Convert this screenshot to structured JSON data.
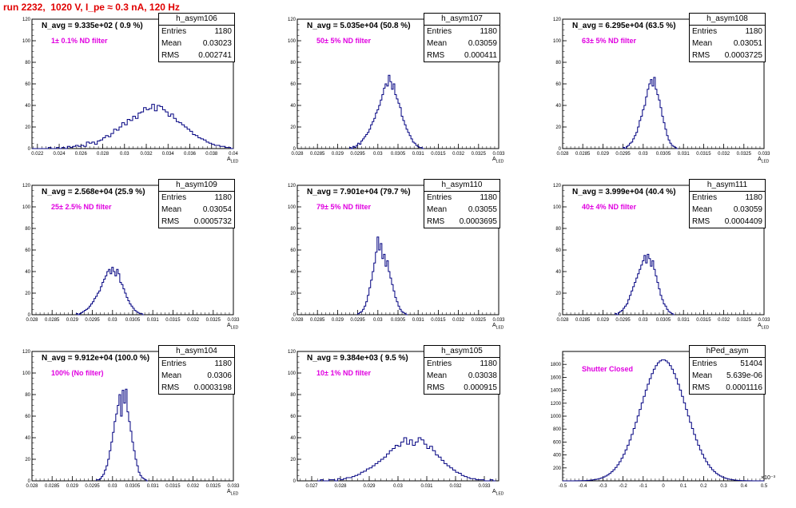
{
  "run_title": "run 2232,  1020 V, I_pe ≈ 0.3 nA, 120 Hz",
  "chart_data": [
    {
      "type": "bar",
      "stats_name": "h_asym106",
      "n_avg": "N_avg = 9.335e+02 ( 0.9 %)",
      "filter": "1± 0.1% ND filter",
      "ylabel": "Events",
      "xlabel": "A",
      "xlabel_sub": "LED",
      "entries": "1180",
      "mean": "0.03023",
      "rms": "0.002741",
      "xlim": [
        0.0215,
        0.04
      ],
      "ylim": [
        0,
        120
      ],
      "xticks": [
        "0.022",
        "0.024",
        "0.026",
        "0.028",
        "0.03",
        "0.032",
        "0.034",
        "0.036",
        "0.038",
        "0.04"
      ],
      "xtick_values": [
        0.022,
        0.024,
        0.026,
        0.028,
        0.03,
        0.032,
        0.034,
        0.036,
        0.038,
        0.04
      ],
      "yticks": [
        0,
        20,
        40,
        60,
        80,
        100,
        120
      ],
      "bin_start": 0.0215,
      "bin_width": 0.00025,
      "values": [
        0,
        0,
        0,
        0,
        0,
        0,
        1,
        0,
        0,
        1,
        0,
        1,
        0,
        2,
        1,
        2,
        3,
        2,
        3,
        2,
        6,
        5,
        6,
        4,
        7,
        8,
        10,
        12,
        11,
        14,
        18,
        17,
        20,
        24,
        22,
        27,
        26,
        30,
        28,
        33,
        34,
        38,
        36,
        37,
        41,
        35,
        40,
        39,
        36,
        34,
        30,
        32,
        28,
        25,
        24,
        22,
        20,
        18,
        16,
        13,
        12,
        10,
        9,
        8,
        6,
        5,
        4,
        3,
        3,
        2,
        2,
        1,
        1,
        0
      ]
    },
    {
      "type": "bar",
      "stats_name": "h_asym107",
      "n_avg": "N_avg = 5.035e+04 (50.8 %)",
      "filter": "50± 5% ND filter",
      "ylabel": "Events",
      "xlabel": "A",
      "xlabel_sub": "LED",
      "entries": "1180",
      "mean": "0.03059",
      "rms": "0.000411",
      "xlim": [
        0.028,
        0.033
      ],
      "ylim": [
        0,
        120
      ],
      "xticks": [
        "0.028",
        "0.0285",
        "0.029",
        "0.0295",
        "0.03",
        "0.0305",
        "0.031",
        "0.0315",
        "0.032",
        "0.0325",
        "0.033"
      ],
      "xtick_values": [
        0.028,
        0.0285,
        0.029,
        0.0295,
        0.03,
        0.0305,
        0.031,
        0.0315,
        0.032,
        0.0325,
        0.033
      ],
      "yticks": [
        0,
        20,
        40,
        60,
        80,
        100,
        120
      ],
      "bin_start": 0.0293,
      "bin_width": 4e-05,
      "values": [
        1,
        0,
        2,
        1,
        3,
        5,
        4,
        7,
        9,
        11,
        13,
        15,
        18,
        22,
        25,
        28,
        33,
        36,
        40,
        45,
        50,
        56,
        60,
        58,
        68,
        62,
        55,
        60,
        50,
        46,
        42,
        38,
        30,
        26,
        22,
        18,
        15,
        12,
        9,
        6,
        5,
        3,
        2,
        1,
        1,
        0
      ]
    },
    {
      "type": "bar",
      "stats_name": "h_asym108",
      "n_avg": "N_avg = 6.295e+04 (63.5 %)",
      "filter": "63± 5% ND filter",
      "ylabel": "Events",
      "xlabel": "A",
      "xlabel_sub": "LED",
      "entries": "1180",
      "mean": "0.03051",
      "rms": "0.0003725",
      "xlim": [
        0.028,
        0.033
      ],
      "ylim": [
        0,
        120
      ],
      "xticks": [
        "0.028",
        "0.0285",
        "0.029",
        "0.0295",
        "0.03",
        "0.0305",
        "0.031",
        "0.0315",
        "0.032",
        "0.0325",
        "0.033"
      ],
      "xtick_values": [
        0.028,
        0.0285,
        0.029,
        0.0295,
        0.03,
        0.0305,
        0.031,
        0.0315,
        0.032,
        0.0325,
        0.033
      ],
      "yticks": [
        0,
        20,
        40,
        60,
        80,
        100,
        120
      ],
      "bin_start": 0.0295,
      "bin_width": 4e-05,
      "values": [
        1,
        0,
        2,
        3,
        5,
        6,
        9,
        12,
        15,
        20,
        26,
        30,
        36,
        40,
        48,
        55,
        60,
        64,
        58,
        66,
        55,
        50,
        45,
        38,
        30,
        24,
        18,
        12,
        8,
        5,
        3,
        2,
        1,
        0
      ]
    },
    {
      "type": "bar",
      "stats_name": "h_asym109",
      "n_avg": "N_avg = 2.568e+04 (25.9 %)",
      "filter": "25± 2.5% ND filter",
      "ylabel": "Events",
      "xlabel": "A",
      "xlabel_sub": "LED",
      "entries": "1180",
      "mean": "0.03054",
      "rms": "0.0005732",
      "xlim": [
        0.028,
        0.033
      ],
      "ylim": [
        0,
        120
      ],
      "xticks": [
        "0.028",
        "0.0285",
        "0.029",
        "0.0295",
        "0.03",
        "0.0305",
        "0.031",
        "0.0315",
        "0.032",
        "0.0325",
        "0.033"
      ],
      "xtick_values": [
        0.028,
        0.0285,
        0.029,
        0.0295,
        0.03,
        0.0305,
        0.031,
        0.0315,
        0.032,
        0.0325,
        0.033
      ],
      "yticks": [
        0,
        20,
        40,
        60,
        80,
        100,
        120
      ],
      "bin_start": 0.0291,
      "bin_width": 4e-05,
      "values": [
        1,
        0,
        1,
        2,
        3,
        4,
        5,
        6,
        8,
        10,
        12,
        15,
        17,
        20,
        22,
        26,
        30,
        33,
        36,
        40,
        42,
        38,
        44,
        40,
        36,
        42,
        38,
        30,
        28,
        24,
        20,
        16,
        13,
        10,
        8,
        6,
        4,
        3,
        2,
        1,
        1,
        0
      ]
    },
    {
      "type": "bar",
      "stats_name": "h_asym110",
      "n_avg": "N_avg = 7.901e+04 (79.7 %)",
      "filter": "79± 5% ND filter",
      "ylabel": "Events",
      "xlabel": "A",
      "xlabel_sub": "LED",
      "entries": "1180",
      "mean": "0.03055",
      "rms": "0.0003695",
      "xlim": [
        0.028,
        0.033
      ],
      "ylim": [
        0,
        120
      ],
      "xticks": [
        "0.028",
        "0.0285",
        "0.029",
        "0.0295",
        "0.03",
        "0.0305",
        "0.031",
        "0.0315",
        "0.032",
        "0.0325",
        "0.033"
      ],
      "xtick_values": [
        0.028,
        0.0285,
        0.029,
        0.0295,
        0.03,
        0.0305,
        0.031,
        0.0315,
        0.032,
        0.0325,
        0.033
      ],
      "yticks": [
        0,
        20,
        40,
        60,
        80,
        100,
        120
      ],
      "bin_start": 0.0295,
      "bin_width": 4e-05,
      "values": [
        1,
        2,
        3,
        5,
        8,
        12,
        18,
        25,
        32,
        40,
        48,
        58,
        72,
        60,
        66,
        52,
        56,
        45,
        50,
        40,
        34,
        28,
        22,
        16,
        12,
        8,
        5,
        3,
        2,
        1,
        0
      ]
    },
    {
      "type": "bar",
      "stats_name": "h_asym111",
      "n_avg": "N_avg = 3.999e+04 (40.4 %)",
      "filter": "40± 4% ND filter",
      "ylabel": "Events",
      "xlabel": "A",
      "xlabel_sub": "LED",
      "entries": "1180",
      "mean": "0.03059",
      "rms": "0.0004409",
      "xlim": [
        0.028,
        0.033
      ],
      "ylim": [
        0,
        120
      ],
      "xticks": [
        "0.028",
        "0.0285",
        "0.029",
        "0.0295",
        "0.03",
        "0.0305",
        "0.031",
        "0.0315",
        "0.032",
        "0.0325",
        "0.033"
      ],
      "xtick_values": [
        0.028,
        0.0285,
        0.029,
        0.0295,
        0.03,
        0.0305,
        0.031,
        0.0315,
        0.032,
        0.0325,
        0.033
      ],
      "yticks": [
        0,
        20,
        40,
        60,
        80,
        100,
        120
      ],
      "bin_start": 0.0293,
      "bin_width": 4e-05,
      "values": [
        1,
        0,
        2,
        3,
        4,
        6,
        8,
        10,
        14,
        18,
        22,
        26,
        30,
        34,
        38,
        42,
        46,
        50,
        55,
        48,
        56,
        52,
        45,
        50,
        42,
        36,
        30,
        24,
        18,
        14,
        10,
        8,
        5,
        3,
        2,
        1,
        0
      ]
    },
    {
      "type": "bar",
      "stats_name": "h_asym104",
      "n_avg": "N_avg = 9.912e+04 (100.0 %)",
      "filter": "100% (No filter)",
      "ylabel": "Events",
      "xlabel": "A",
      "xlabel_sub": "LED",
      "entries": "1180",
      "mean": "0.0306",
      "rms": "0.0003198",
      "xlim": [
        0.028,
        0.033
      ],
      "ylim": [
        0,
        120
      ],
      "xticks": [
        "0.028",
        "0.0285",
        "0.029",
        "0.0295",
        "0.03",
        "0.0305",
        "0.031",
        "0.0315",
        "0.032",
        "0.0325",
        "0.033"
      ],
      "xtick_values": [
        0.028,
        0.0285,
        0.029,
        0.0295,
        0.03,
        0.0305,
        0.031,
        0.0315,
        0.032,
        0.0325,
        0.033
      ],
      "yticks": [
        0,
        20,
        40,
        60,
        80,
        100,
        120
      ],
      "bin_start": 0.0296,
      "bin_width": 4e-05,
      "values": [
        1,
        1,
        2,
        4,
        6,
        10,
        14,
        20,
        28,
        36,
        45,
        55,
        62,
        70,
        80,
        60,
        84,
        72,
        85,
        64,
        55,
        46,
        36,
        28,
        20,
        14,
        8,
        5,
        3,
        2,
        1,
        0
      ]
    },
    {
      "type": "bar",
      "stats_name": "h_asym105",
      "n_avg": "N_avg = 9.384e+03 ( 9.5 %)",
      "filter": "10± 1% ND filter",
      "ylabel": "Events",
      "xlabel": "A",
      "xlabel_sub": "LED",
      "entries": "1180",
      "mean": "0.03038",
      "rms": "0.000915",
      "xlim": [
        0.0265,
        0.0335
      ],
      "ylim": [
        0,
        120
      ],
      "xticks": [
        "0.027",
        "0.028",
        "0.029",
        "0.03",
        "0.031",
        "0.032",
        "0.033"
      ],
      "xtick_values": [
        0.027,
        0.028,
        0.029,
        0.03,
        0.031,
        0.032,
        0.033
      ],
      "yticks": [
        0,
        20,
        40,
        60,
        80,
        100,
        120
      ],
      "bin_start": 0.0272,
      "bin_width": 0.0001,
      "values": [
        0,
        1,
        0,
        0,
        1,
        1,
        0,
        2,
        1,
        2,
        3,
        3,
        4,
        5,
        6,
        8,
        9,
        11,
        12,
        14,
        16,
        18,
        20,
        22,
        25,
        28,
        30,
        33,
        32,
        36,
        40,
        34,
        38,
        33,
        36,
        40,
        38,
        34,
        30,
        32,
        28,
        24,
        22,
        19,
        16,
        14,
        12,
        10,
        8,
        7,
        5,
        4,
        3,
        2,
        2,
        1,
        1,
        1,
        0,
        0,
        1,
        0
      ]
    },
    {
      "type": "bar",
      "stats_name": "hPed_asym",
      "n_avg": "",
      "filter": "Shutter Closed",
      "ylabel": "",
      "xlabel": "",
      "xlabel_sub": "",
      "exponent": "×10⁻³",
      "entries": "51404",
      "mean": "5.639e-06",
      "rms": "0.0001116",
      "xlim": [
        -0.5,
        0.5
      ],
      "ylim": [
        0,
        2000
      ],
      "xticks": [
        "-0.5",
        "-0.4",
        "-0.3",
        "-0.2",
        "-0.1",
        "0",
        "0.1",
        "0.2",
        "0.3",
        "0.4",
        "0.5"
      ],
      "xtick_values": [
        -0.5,
        -0.4,
        -0.3,
        -0.2,
        -0.1,
        0,
        0.1,
        0.2,
        0.3,
        0.4,
        0.5
      ],
      "yticks": [
        200,
        400,
        600,
        800,
        1000,
        1200,
        1400,
        1600,
        1800
      ],
      "bin_start": -0.5,
      "bin_width": 0.01,
      "gaussian": {
        "peak": 1870,
        "mean": 0.0,
        "sigma": 0.112
      }
    }
  ]
}
